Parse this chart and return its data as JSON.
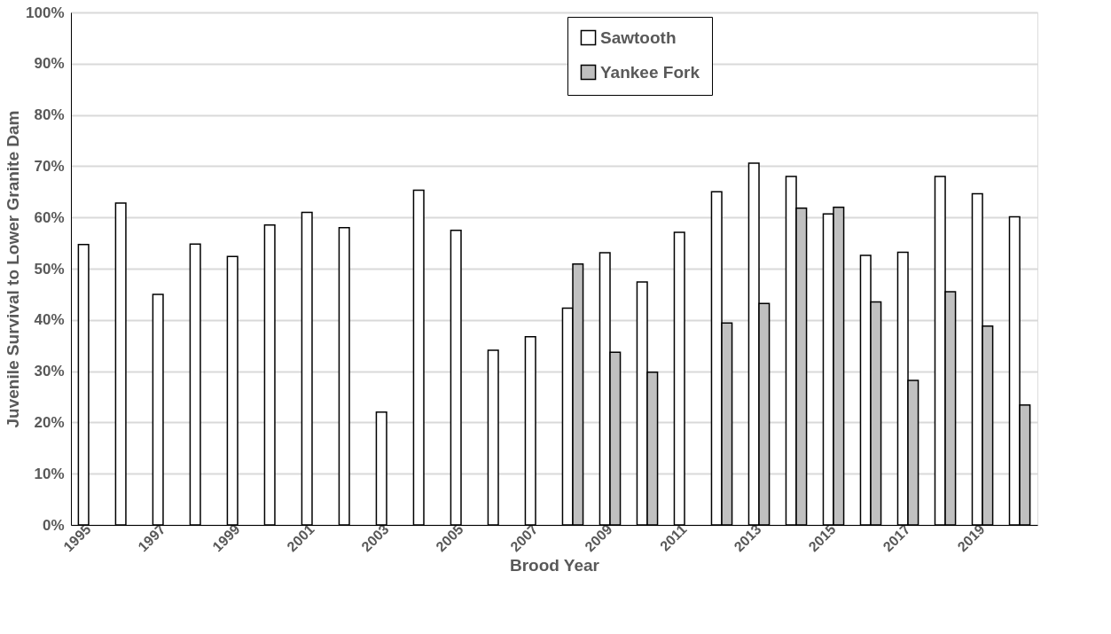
{
  "chart_data": {
    "type": "bar",
    "xlabel": "Brood Year",
    "ylabel": "Juvenile Survival to Lower Granite Dam",
    "categories": [
      "1995",
      null,
      "1997",
      null,
      "1999",
      null,
      "2001",
      null,
      "2003",
      null,
      "2005",
      null,
      "2007",
      null,
      "2009",
      null,
      "2011",
      null,
      "2013",
      null,
      "2015",
      null,
      "2017",
      null,
      "2019",
      null
    ],
    "series": [
      {
        "name": "Sawtooth",
        "color": "#ffffff",
        "values": [
          54.7,
          62.8,
          45,
          54.8,
          52.4,
          58.5,
          61,
          58,
          22,
          65.3,
          57.5,
          34.1,
          36.7,
          42.3,
          53.1,
          47.4,
          57.1,
          65,
          70.6,
          68,
          60.7,
          52.6,
          53.2,
          68,
          64.6,
          60.1
        ]
      },
      {
        "name": "Yankee Fork",
        "color": "#c0c0c0",
        "values": [
          null,
          null,
          null,
          null,
          null,
          null,
          null,
          null,
          null,
          null,
          null,
          null,
          null,
          50.9,
          33.7,
          29.8,
          null,
          39.4,
          43.2,
          61.8,
          62,
          43.5,
          28.2,
          45.5,
          38.8,
          23.4
        ]
      }
    ],
    "ylim": [
      0,
      100
    ],
    "yticks": [
      {
        "value": 0,
        "label": "0%"
      },
      {
        "value": 10,
        "label": "10%"
      },
      {
        "value": 20,
        "label": "20%"
      },
      {
        "value": 30,
        "label": "30%"
      },
      {
        "value": 40,
        "label": "40%"
      },
      {
        "value": 50,
        "label": "50%"
      },
      {
        "value": 60,
        "label": "60%"
      },
      {
        "value": 70,
        "label": "70%"
      },
      {
        "value": 80,
        "label": "80%"
      },
      {
        "value": 90,
        "label": "90%"
      },
      {
        "value": 100,
        "label": "100%"
      }
    ],
    "grid": "y",
    "legend": "top"
  }
}
